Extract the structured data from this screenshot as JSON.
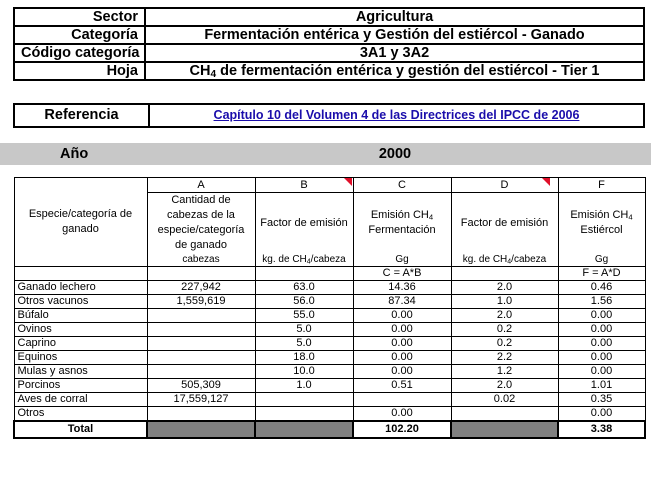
{
  "header": {
    "sector_label": "Sector",
    "sector_value": "Agricultura",
    "category_label": "Categoría",
    "category_value": "Fermentación entérica y Gestión del estiércol - Ganado",
    "code_label": "Código categoría",
    "code_value": "3A1 y 3A2",
    "sheet_label": "Hoja",
    "sheet_prefix": "CH",
    "sheet_sub": "4",
    "sheet_rest": " de fermentación entérica y gestión del estiércol - Tier 1"
  },
  "reference": {
    "label": "Referencia",
    "link_text": "Capítulo 10 del Volumen 4 de las Directrices del IPCC de 2006"
  },
  "year": {
    "label": "Año",
    "value": "2000"
  },
  "columns": {
    "letters": [
      "A",
      "B",
      "C",
      "D",
      "F"
    ],
    "species_header": "Especie/categoría de ganado",
    "a_header": "Cantidad de cabezas de la especie/categoría de ganado",
    "b_header": "Factor de emisión",
    "c_header_pre": "Emisión CH",
    "c_header_sub": "4",
    "c_header_post": " Fermentación",
    "d_header": "Factor de emisión",
    "f_header_pre": "Emisión CH",
    "f_header_sub": "4",
    "f_header_post": " Estiércol",
    "units": {
      "a": "cabezas",
      "b_pre": "kg. de CH",
      "b_sub": "4",
      "b_post": "/cabeza",
      "c": "Gg",
      "d_pre": "kg. de CH",
      "d_sub": "4",
      "d_post": "/cabeza",
      "f": "Gg"
    },
    "formula_c": "C = A*B",
    "formula_f": "F = A*D"
  },
  "rows": [
    {
      "name": "Ganado lechero",
      "a": "227,942",
      "b": "63.0",
      "c": "14.36",
      "d": "2.0",
      "f": "0.46"
    },
    {
      "name": "Otros vacunos",
      "a": "1,559,619",
      "b": "56.0",
      "c": "87.34",
      "d": "1.0",
      "f": "1.56"
    },
    {
      "name": "Búfalo",
      "a": "",
      "b": "55.0",
      "c": "0.00",
      "d": "2.0",
      "f": "0.00"
    },
    {
      "name": "Ovinos",
      "a": "",
      "b": "5.0",
      "c": "0.00",
      "d": "0.2",
      "f": "0.00"
    },
    {
      "name": "Caprino",
      "a": "",
      "b": "5.0",
      "c": "0.00",
      "d": "0.2",
      "f": "0.00"
    },
    {
      "name": "Equinos",
      "a": "",
      "b": "18.0",
      "c": "0.00",
      "d": "2.2",
      "f": "0.00"
    },
    {
      "name": "Mulas y asnos",
      "a": "",
      "b": "10.0",
      "c": "0.00",
      "d": "1.2",
      "f": "0.00"
    },
    {
      "name": "Porcinos",
      "a": "505,309",
      "b": "1.0",
      "c": "0.51",
      "d": "2.0",
      "f": "1.01"
    },
    {
      "name": "Aves de corral",
      "a": "17,559,127",
      "b": "",
      "c": "",
      "d": "0.02",
      "f": "0.35"
    },
    {
      "name": "Otros",
      "a": "",
      "b": "",
      "c": "0.00",
      "d": "",
      "f": "0.00"
    }
  ],
  "total": {
    "label": "Total",
    "c": "102.20",
    "f": "3.38"
  }
}
